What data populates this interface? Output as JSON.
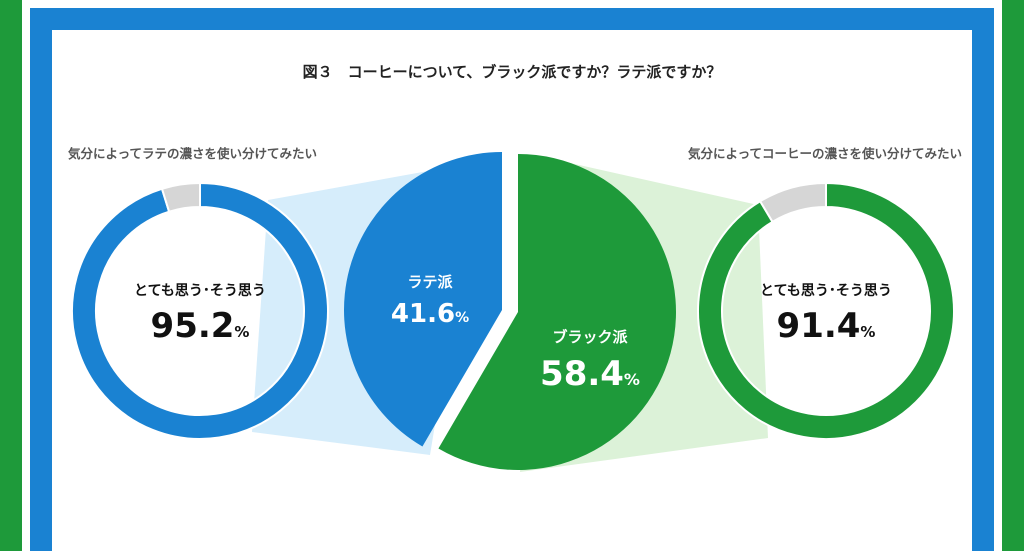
{
  "title": "図３　コーヒーについて、ブラック派ですか？ラテ派ですか？",
  "chart_data": [
    {
      "type": "pie",
      "slices": [
        {
          "name": "ラテ派",
          "value": 41.6,
          "color": "#1a82d2"
        },
        {
          "name": "ブラック派",
          "value": 58.4,
          "color": "#1e9a3a"
        }
      ],
      "unit": "%"
    },
    {
      "type": "pie",
      "question": "気分によってラテの濃さを使い分けてみたい",
      "label": "とても思う･そう思う",
      "value": 95.2,
      "unit": "%",
      "slices": [
        {
          "value": 95.2,
          "color": "#1a82d2"
        },
        {
          "value": 4.8,
          "color": "#d6d6d6"
        }
      ]
    },
    {
      "type": "pie",
      "question": "気分によってコーヒーの濃さを使い分けてみたい",
      "label": "とても思う･そう思う",
      "value": 91.4,
      "unit": "%",
      "slices": [
        {
          "value": 91.4,
          "color": "#1e9a3a"
        },
        {
          "value": 8.6,
          "color": "#d6d6d6"
        }
      ]
    }
  ]
}
